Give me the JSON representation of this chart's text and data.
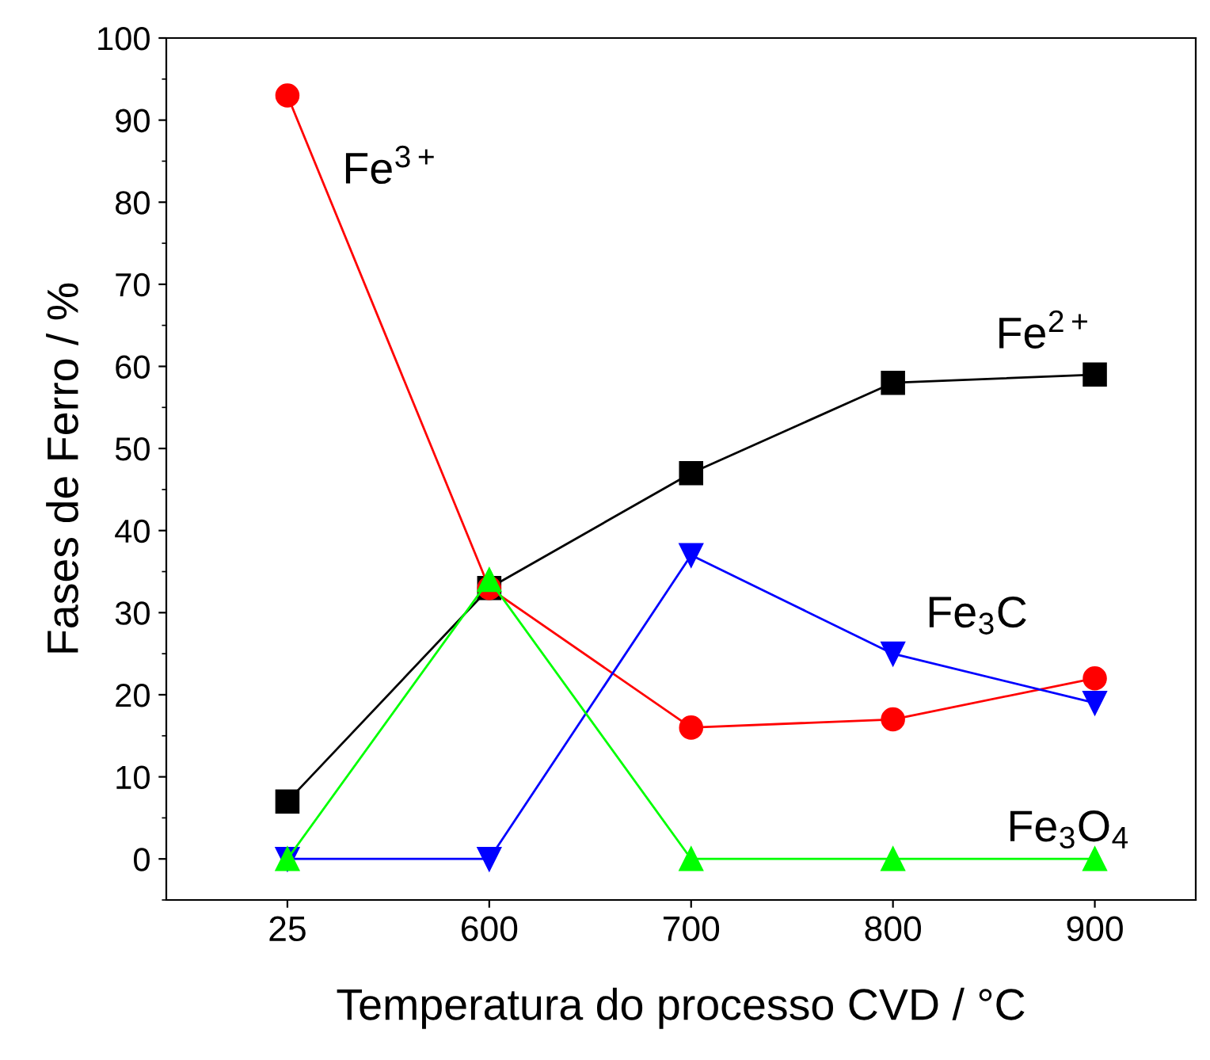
{
  "chart_data": {
    "type": "line",
    "xlabel": "Temperatura do processo CVD / °C",
    "ylabel": "Fases de Ferro / %",
    "categories": [
      "25",
      "600",
      "700",
      "800",
      "900"
    ],
    "series": [
      {
        "name": "Fe$^{2+}$",
        "color": "#000000",
        "marker": "square",
        "values": [
          7,
          33,
          47,
          58,
          59
        ]
      },
      {
        "name": "Fe$^{3+}$",
        "color": "#ff0000",
        "marker": "circle",
        "values": [
          93,
          33,
          16,
          17,
          22
        ]
      },
      {
        "name": "Fe$_{3}$C",
        "color": "#0000ff",
        "marker": "triangle_down",
        "values": [
          0,
          0,
          37,
          25,
          19
        ]
      },
      {
        "name": "Fe$_{3}$O$_{4}$",
        "color": "#00ff00",
        "marker": "triangle",
        "values": [
          0,
          34,
          0,
          0,
          0
        ]
      }
    ],
    "ylim": [
      -5,
      100
    ],
    "yticks": [
      0,
      10,
      20,
      30,
      40,
      50,
      60,
      70,
      80,
      90,
      100
    ],
    "grid": false,
    "legend": false,
    "line_style": "solid"
  }
}
